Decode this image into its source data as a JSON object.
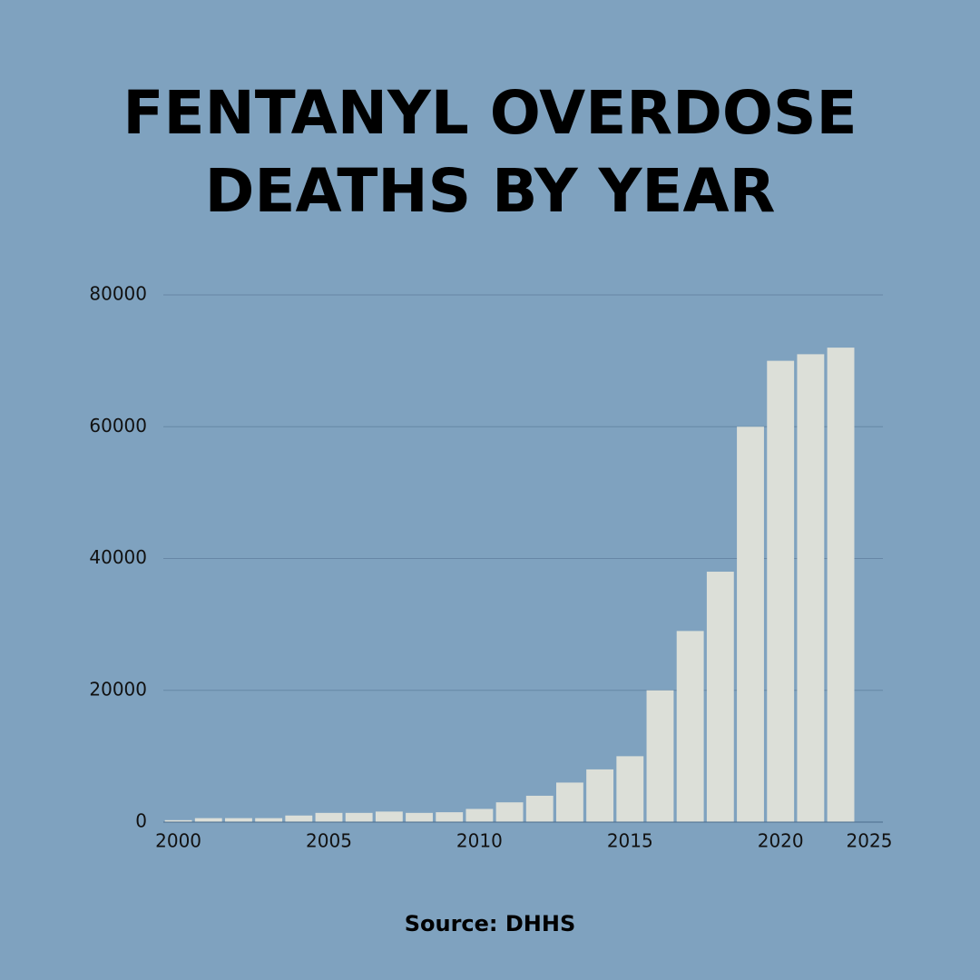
{
  "chart_data": {
    "type": "bar",
    "title": "FENTANYL OVERDOSE DEATHS BY YEAR",
    "source": "Source: DHHS",
    "x": [
      2000,
      2001,
      2002,
      2003,
      2004,
      2005,
      2006,
      2007,
      2008,
      2009,
      2010,
      2011,
      2012,
      2013,
      2014,
      2015,
      2016,
      2017,
      2018,
      2019,
      2020,
      2021,
      2022
    ],
    "values": [
      300,
      600,
      600,
      600,
      1000,
      1400,
      1400,
      1600,
      1400,
      1500,
      2000,
      3000,
      4000,
      6000,
      8000,
      10000,
      20000,
      29000,
      38000,
      60000,
      70000,
      71000,
      72000
    ],
    "color": "#dcdfd8",
    "xlim": [
      1999.5,
      2023.4
    ],
    "xticks": [
      2000,
      2005,
      2010,
      2015,
      2020,
      2025
    ],
    "ylim": [
      0,
      80000
    ],
    "yticks": [
      0,
      20000,
      40000,
      60000,
      80000
    ],
    "grid": true
  }
}
